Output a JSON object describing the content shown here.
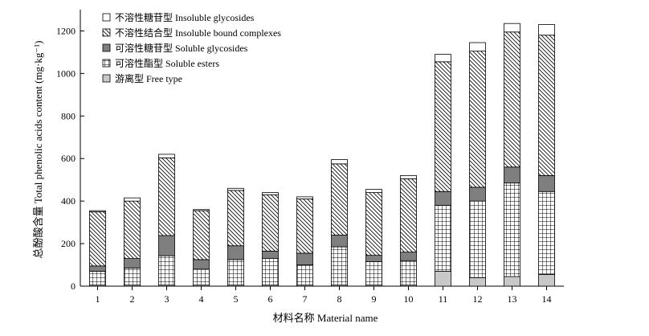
{
  "chart_data": {
    "type": "bar",
    "stacked": true,
    "xlabel": "材料名称 Material name",
    "ylabel": "总酚酸含量 Total phenolic acids content (mg·kg⁻¹)",
    "ylim": [
      0,
      1300
    ],
    "yticks": [
      0,
      200,
      400,
      600,
      800,
      1000,
      1200
    ],
    "categories": [
      "1",
      "2",
      "3",
      "4",
      "5",
      "6",
      "7",
      "8",
      "9",
      "10",
      "11",
      "12",
      "13",
      "14"
    ],
    "legend_position": "top-left",
    "grid": false,
    "series": [
      {
        "name": "游离型 Free type",
        "pattern": "gray",
        "color": "#c8c8c8",
        "values": [
          5,
          5,
          5,
          5,
          5,
          5,
          5,
          5,
          5,
          5,
          70,
          40,
          45,
          55
        ]
      },
      {
        "name": "可溶性酯型 Soluble esters",
        "pattern": "grid",
        "color": "#ffffff",
        "values": [
          65,
          80,
          138,
          75,
          120,
          125,
          95,
          180,
          110,
          115,
          310,
          360,
          440,
          390
        ]
      },
      {
        "name": "可溶性糖苷型 Soluble glycosides",
        "pattern": "dark",
        "color": "#7f7f7f",
        "values": [
          25,
          45,
          95,
          45,
          65,
          35,
          55,
          55,
          30,
          40,
          65,
          65,
          75,
          75
        ]
      },
      {
        "name": "不溶性结合型 Insoluble bound complexes",
        "pattern": "hatch",
        "color": "#ffffff",
        "values": [
          255,
          270,
          365,
          230,
          260,
          265,
          255,
          335,
          295,
          345,
          610,
          640,
          635,
          660
        ]
      },
      {
        "name": "不溶性糖苷型 Insoluble glycosides",
        "pattern": "white",
        "color": "#ffffff",
        "values": [
          5,
          15,
          17,
          5,
          10,
          10,
          10,
          20,
          15,
          15,
          35,
          40,
          40,
          50
        ]
      }
    ]
  }
}
